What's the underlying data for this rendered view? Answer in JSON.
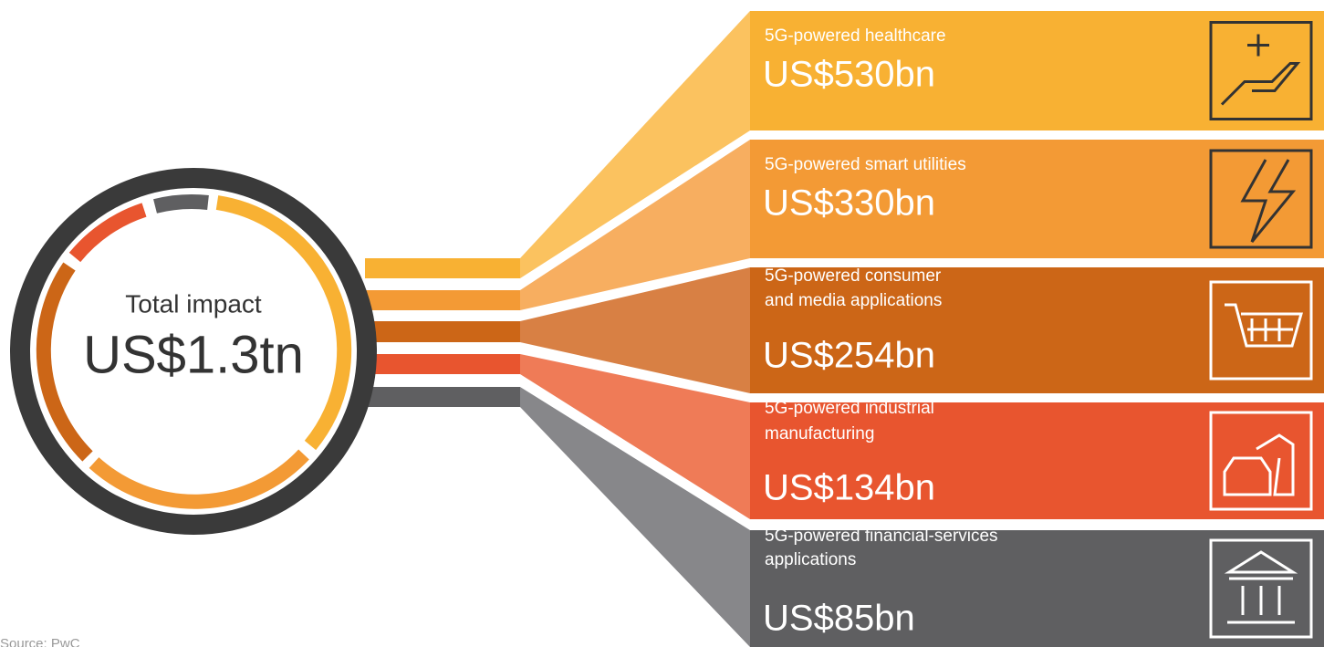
{
  "center": {
    "label": "Total impact",
    "value": "US$1.3tn"
  },
  "items": [
    {
      "label": [
        "5G-powered healthcare"
      ],
      "value": "US$530bn"
    },
    {
      "label": [
        "5G-powered smart utilities"
      ],
      "value": "US$330bn"
    },
    {
      "label": [
        "5G-powered consumer",
        "and media applications"
      ],
      "value": "US$254bn"
    },
    {
      "label": [
        "5G-powered industrial",
        "manufacturing"
      ],
      "value": "US$134bn"
    },
    {
      "label": [
        "5G-powered financial-services",
        "applications"
      ],
      "value": "US$85bn"
    }
  ],
  "source": "Source: PwC"
}
